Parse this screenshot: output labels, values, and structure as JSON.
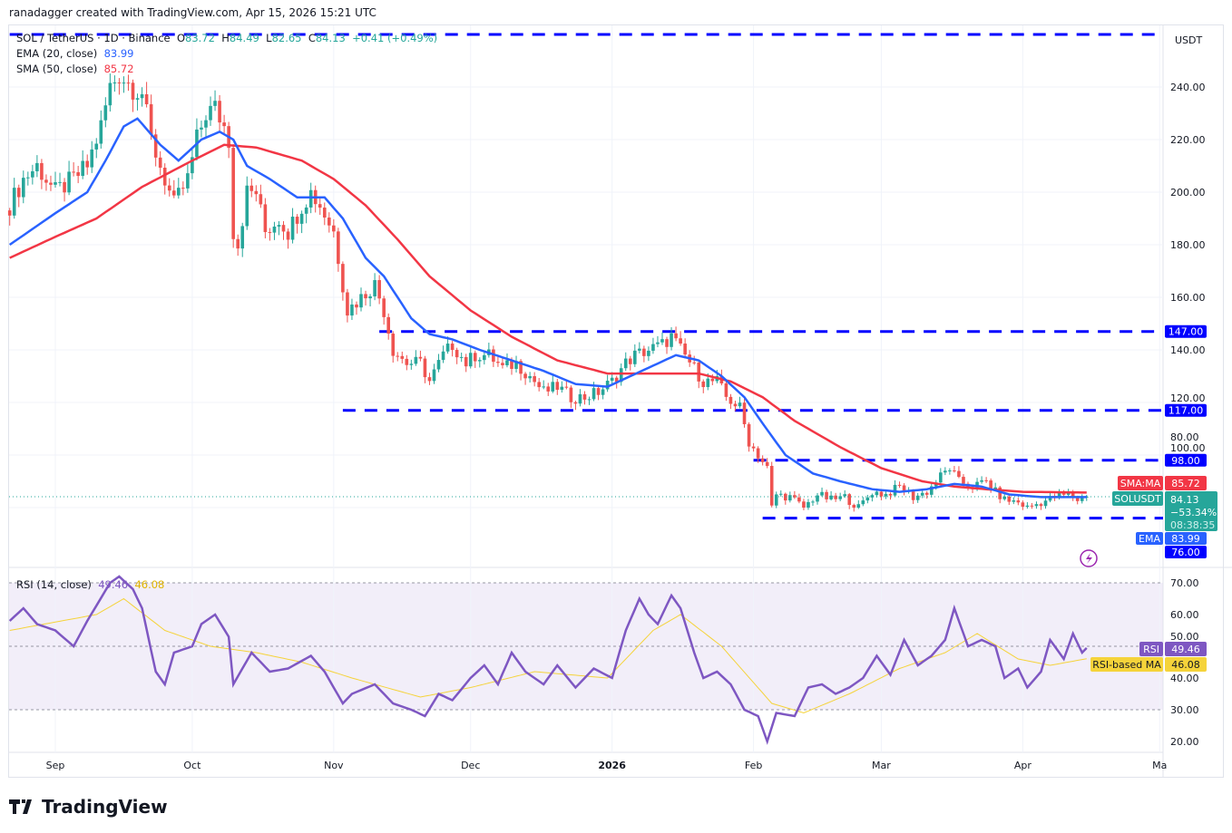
{
  "credit": "ranadagger created with TradingView.com, Apr 15, 2026 15:21 UTC",
  "legend": {
    "symbol": "SOL / TetherUS · 1D · Binance",
    "o_label": "O",
    "o": "83.72",
    "h_label": "H",
    "h": "84.49",
    "l_label": "L",
    "l": "82.65",
    "c_label": "C",
    "c": "84.13",
    "change": "+0.41 (+0.49%)",
    "ema_label": "EMA (20, close)",
    "ema_value": "83.99",
    "sma_label": "SMA (50, close)",
    "sma_value": "85.72",
    "rsi_label": "RSI (14, close)",
    "rsi_value": "49.46",
    "rsi_ma_value": "46.08"
  },
  "logo": "TradingView",
  "chart_data": [
    {
      "type": "candlestick",
      "currency": "USDT",
      "y_ticks": [
        "240.00",
        "220.00",
        "200.00",
        "180.00",
        "160.00",
        "140.00",
        "120.00",
        "100.00",
        "80.00"
      ],
      "x_ticks": [
        {
          "label": "Sep",
          "date": "2025-09-01"
        },
        {
          "label": "Oct",
          "date": "2025-10-01"
        },
        {
          "label": "Nov",
          "date": "2025-11-01"
        },
        {
          "label": "Dec",
          "date": "2025-12-01"
        },
        {
          "label": "2026",
          "date": "2026-01-01"
        },
        {
          "label": "Feb",
          "date": "2026-02-01"
        },
        {
          "label": "Mar",
          "date": "2026-03-01"
        },
        {
          "label": "Apr",
          "date": "2026-04-01"
        },
        {
          "label": "Ma",
          "date": "2026-05-01"
        }
      ],
      "ylim": [
        72,
        264
      ],
      "xlim": [
        "2025-08-22",
        "2026-05-01"
      ],
      "colors": {
        "up": "#26a69a",
        "down": "#ef5350",
        "ema": "#2962ff",
        "sma": "#f23645",
        "levels": "#0000ff"
      },
      "close_anchors": [
        [
          "2025-08-22",
          195
        ],
        [
          "2025-08-25",
          205
        ],
        [
          "2025-08-28",
          210
        ],
        [
          "2025-09-01",
          200
        ],
        [
          "2025-09-05",
          205
        ],
        [
          "2025-09-08",
          210
        ],
        [
          "2025-09-11",
          225
        ],
        [
          "2025-09-13",
          240
        ],
        [
          "2025-09-15",
          245
        ],
        [
          "2025-09-18",
          240
        ],
        [
          "2025-09-20",
          238
        ],
        [
          "2025-09-22",
          220
        ],
        [
          "2025-09-25",
          205
        ],
        [
          "2025-09-27",
          195
        ],
        [
          "2025-09-30",
          205
        ],
        [
          "2025-10-02",
          220
        ],
        [
          "2025-10-04",
          230
        ],
        [
          "2025-10-06",
          232
        ],
        [
          "2025-10-08",
          225
        ],
        [
          "2025-10-09",
          220
        ],
        [
          "2025-10-10",
          185
        ],
        [
          "2025-10-11",
          180
        ],
        [
          "2025-10-13",
          200
        ],
        [
          "2025-10-15",
          200
        ],
        [
          "2025-10-17",
          185
        ],
        [
          "2025-10-20",
          190
        ],
        [
          "2025-10-22",
          185
        ],
        [
          "2025-10-25",
          195
        ],
        [
          "2025-10-27",
          200
        ],
        [
          "2025-10-29",
          195
        ],
        [
          "2025-11-01",
          185
        ],
        [
          "2025-11-03",
          165
        ],
        [
          "2025-11-04",
          155
        ],
        [
          "2025-11-07",
          160
        ],
        [
          "2025-11-10",
          165
        ],
        [
          "2025-11-12",
          155
        ],
        [
          "2025-11-14",
          140
        ],
        [
          "2025-11-17",
          135
        ],
        [
          "2025-11-20",
          135
        ],
        [
          "2025-11-22",
          128
        ],
        [
          "2025-11-25",
          138
        ],
        [
          "2025-11-27",
          142
        ],
        [
          "2025-11-30",
          135
        ],
        [
          "2025-12-02",
          138
        ],
        [
          "2025-12-05",
          138
        ],
        [
          "2025-12-08",
          133
        ],
        [
          "2025-12-11",
          135
        ],
        [
          "2025-12-14",
          130
        ],
        [
          "2025-12-17",
          124
        ],
        [
          "2025-12-20",
          126
        ],
        [
          "2025-12-23",
          122
        ],
        [
          "2025-12-26",
          122
        ],
        [
          "2025-12-29",
          124
        ],
        [
          "2026-01-01",
          128
        ],
        [
          "2026-01-04",
          135
        ],
        [
          "2026-01-06",
          138
        ],
        [
          "2026-01-09",
          140
        ],
        [
          "2026-01-12",
          142
        ],
        [
          "2026-01-14",
          145
        ],
        [
          "2026-01-16",
          140
        ],
        [
          "2026-01-19",
          133
        ],
        [
          "2026-01-21",
          128
        ],
        [
          "2026-01-24",
          128
        ],
        [
          "2026-01-26",
          122
        ],
        [
          "2026-01-29",
          118
        ],
        [
          "2026-01-31",
          105
        ],
        [
          "2026-02-02",
          100
        ],
        [
          "2026-02-04",
          95
        ],
        [
          "2026-02-05",
          80
        ],
        [
          "2026-02-06",
          85
        ],
        [
          "2026-02-09",
          84
        ],
        [
          "2026-02-12",
          80
        ],
        [
          "2026-02-15",
          85
        ],
        [
          "2026-02-18",
          83
        ],
        [
          "2026-02-21",
          84
        ],
        [
          "2026-02-24",
          80
        ],
        [
          "2026-02-27",
          86
        ],
        [
          "2026-03-02",
          85
        ],
        [
          "2026-03-05",
          88
        ],
        [
          "2026-03-08",
          84
        ],
        [
          "2026-03-11",
          86
        ],
        [
          "2026-03-14",
          92
        ],
        [
          "2026-03-16",
          95
        ],
        [
          "2026-03-18",
          90
        ],
        [
          "2026-03-21",
          88
        ],
        [
          "2026-03-24",
          90
        ],
        [
          "2026-03-26",
          86
        ],
        [
          "2026-03-28",
          83
        ],
        [
          "2026-03-31",
          82
        ],
        [
          "2026-04-02",
          80
        ],
        [
          "2026-04-05",
          82
        ],
        [
          "2026-04-08",
          84
        ],
        [
          "2026-04-11",
          85
        ],
        [
          "2026-04-13",
          83
        ],
        [
          "2026-04-15",
          84.13
        ]
      ],
      "ema20": [
        [
          "2025-08-22",
          180
        ],
        [
          "2025-09-01",
          192
        ],
        [
          "2025-09-08",
          200
        ],
        [
          "2025-09-12",
          212
        ],
        [
          "2025-09-16",
          225
        ],
        [
          "2025-09-19",
          228
        ],
        [
          "2025-09-24",
          218
        ],
        [
          "2025-09-28",
          212
        ],
        [
          "2025-10-03",
          220
        ],
        [
          "2025-10-07",
          223
        ],
        [
          "2025-10-10",
          220
        ],
        [
          "2025-10-13",
          210
        ],
        [
          "2025-10-18",
          205
        ],
        [
          "2025-10-24",
          198
        ],
        [
          "2025-10-30",
          198
        ],
        [
          "2025-11-03",
          190
        ],
        [
          "2025-11-08",
          175
        ],
        [
          "2025-11-12",
          168
        ],
        [
          "2025-11-18",
          152
        ],
        [
          "2025-11-22",
          146
        ],
        [
          "2025-11-27",
          144
        ],
        [
          "2025-12-03",
          140
        ],
        [
          "2025-12-10",
          136
        ],
        [
          "2025-12-17",
          132
        ],
        [
          "2025-12-24",
          127
        ],
        [
          "2025-12-31",
          126
        ],
        [
          "2026-01-05",
          130
        ],
        [
          "2026-01-10",
          134
        ],
        [
          "2026-01-15",
          138
        ],
        [
          "2026-01-20",
          136
        ],
        [
          "2026-01-25",
          130
        ],
        [
          "2026-01-30",
          122
        ],
        [
          "2026-02-03",
          112
        ],
        [
          "2026-02-08",
          100
        ],
        [
          "2026-02-14",
          93
        ],
        [
          "2026-02-20",
          90
        ],
        [
          "2026-02-27",
          87
        ],
        [
          "2026-03-05",
          86
        ],
        [
          "2026-03-11",
          87
        ],
        [
          "2026-03-17",
          89
        ],
        [
          "2026-03-23",
          88
        ],
        [
          "2026-03-29",
          85
        ],
        [
          "2026-04-05",
          84
        ],
        [
          "2026-04-15",
          83.99
        ]
      ],
      "sma50": [
        [
          "2025-08-22",
          175
        ],
        [
          "2025-09-01",
          183
        ],
        [
          "2025-09-10",
          190
        ],
        [
          "2025-09-20",
          202
        ],
        [
          "2025-10-01",
          212
        ],
        [
          "2025-10-08",
          218
        ],
        [
          "2025-10-15",
          217
        ],
        [
          "2025-10-25",
          212
        ],
        [
          "2025-11-01",
          205
        ],
        [
          "2025-11-08",
          195
        ],
        [
          "2025-11-15",
          182
        ],
        [
          "2025-11-22",
          168
        ],
        [
          "2025-12-01",
          155
        ],
        [
          "2025-12-10",
          145
        ],
        [
          "2025-12-20",
          136
        ],
        [
          "2025-12-31",
          131
        ],
        [
          "2026-01-10",
          131
        ],
        [
          "2026-01-20",
          131
        ],
        [
          "2026-01-27",
          128
        ],
        [
          "2026-02-03",
          122
        ],
        [
          "2026-02-10",
          113
        ],
        [
          "2026-02-20",
          103
        ],
        [
          "2026-03-01",
          95
        ],
        [
          "2026-03-10",
          90
        ],
        [
          "2026-03-17",
          88
        ],
        [
          "2026-03-24",
          87
        ],
        [
          "2026-04-01",
          86
        ],
        [
          "2026-04-15",
          85.72
        ]
      ],
      "levels": [
        {
          "value": 260,
          "from": "2025-08-22"
        },
        {
          "value": 147,
          "label": "147.00",
          "from": "2025-11-11"
        },
        {
          "value": 117,
          "label": "117.00",
          "from": "2025-11-03"
        },
        {
          "value": 98,
          "label": "98.00",
          "from": "2026-02-01"
        },
        {
          "value": 76,
          "label": "76.00",
          "from": "2026-02-03"
        }
      ],
      "badges": {
        "sma_name": "SMA:MA",
        "sma": "85.72",
        "symbol": "SOLUSDT",
        "last": "84.13",
        "pct": "−53.34%",
        "countdown": "08:38:35",
        "ema_name": "EMA",
        "ema": "83.99"
      }
    },
    {
      "type": "line",
      "ylim": [
        16,
        73
      ],
      "y_ticks": [
        "70.00",
        "60.00",
        "50.00",
        "40.00",
        "30.00",
        "20.00"
      ],
      "bands": [
        30,
        50,
        70
      ],
      "colors": {
        "rsi": "#7e57c2",
        "ma": "#f5d33a",
        "band": "#7e57c2"
      },
      "rsi": [
        [
          "2025-08-22",
          58
        ],
        [
          "2025-08-25",
          62
        ],
        [
          "2025-08-28",
          57
        ],
        [
          "2025-09-01",
          55
        ],
        [
          "2025-09-05",
          50
        ],
        [
          "2025-09-08",
          58
        ],
        [
          "2025-09-13",
          70
        ],
        [
          "2025-09-15",
          72
        ],
        [
          "2025-09-18",
          68
        ],
        [
          "2025-09-20",
          62
        ],
        [
          "2025-09-23",
          42
        ],
        [
          "2025-09-25",
          38
        ],
        [
          "2025-09-27",
          48
        ],
        [
          "2025-10-01",
          50
        ],
        [
          "2025-10-03",
          57
        ],
        [
          "2025-10-06",
          60
        ],
        [
          "2025-10-09",
          53
        ],
        [
          "2025-10-10",
          38
        ],
        [
          "2025-10-14",
          48
        ],
        [
          "2025-10-18",
          42
        ],
        [
          "2025-10-22",
          43
        ],
        [
          "2025-10-27",
          47
        ],
        [
          "2025-10-30",
          42
        ],
        [
          "2025-11-03",
          32
        ],
        [
          "2025-11-05",
          35
        ],
        [
          "2025-11-10",
          38
        ],
        [
          "2025-11-14",
          32
        ],
        [
          "2025-11-18",
          30
        ],
        [
          "2025-11-21",
          28
        ],
        [
          "2025-11-24",
          35
        ],
        [
          "2025-11-27",
          33
        ],
        [
          "2025-12-01",
          40
        ],
        [
          "2025-12-04",
          44
        ],
        [
          "2025-12-07",
          38
        ],
        [
          "2025-12-10",
          48
        ],
        [
          "2025-12-13",
          42
        ],
        [
          "2025-12-17",
          38
        ],
        [
          "2025-12-20",
          44
        ],
        [
          "2025-12-24",
          37
        ],
        [
          "2025-12-28",
          43
        ],
        [
          "2026-01-01",
          40
        ],
        [
          "2026-01-04",
          55
        ],
        [
          "2026-01-07",
          65
        ],
        [
          "2026-01-09",
          60
        ],
        [
          "2026-01-11",
          57
        ],
        [
          "2026-01-14",
          66
        ],
        [
          "2026-01-16",
          62
        ],
        [
          "2026-01-19",
          48
        ],
        [
          "2026-01-21",
          40
        ],
        [
          "2026-01-24",
          42
        ],
        [
          "2026-01-27",
          38
        ],
        [
          "2026-01-30",
          30
        ],
        [
          "2026-02-02",
          28
        ],
        [
          "2026-02-04",
          20
        ],
        [
          "2026-02-06",
          29
        ],
        [
          "2026-02-10",
          28
        ],
        [
          "2026-02-13",
          37
        ],
        [
          "2026-02-16",
          38
        ],
        [
          "2026-02-19",
          35
        ],
        [
          "2026-02-22",
          37
        ],
        [
          "2026-02-25",
          40
        ],
        [
          "2026-02-28",
          47
        ],
        [
          "2026-03-03",
          41
        ],
        [
          "2026-03-06",
          52
        ],
        [
          "2026-03-09",
          44
        ],
        [
          "2026-03-12",
          47
        ],
        [
          "2026-03-15",
          52
        ],
        [
          "2026-03-17",
          62
        ],
        [
          "2026-03-20",
          50
        ],
        [
          "2026-03-23",
          52
        ],
        [
          "2026-03-26",
          50
        ],
        [
          "2026-03-28",
          40
        ],
        [
          "2026-03-31",
          43
        ],
        [
          "2026-04-02",
          37
        ],
        [
          "2026-04-05",
          42
        ],
        [
          "2026-04-07",
          52
        ],
        [
          "2026-04-10",
          46
        ],
        [
          "2026-04-12",
          54
        ],
        [
          "2026-04-14",
          48
        ],
        [
          "2026-04-15",
          49.46
        ]
      ],
      "rsi_ma": [
        [
          "2025-08-22",
          55
        ],
        [
          "2025-09-10",
          60
        ],
        [
          "2025-09-16",
          65
        ],
        [
          "2025-09-25",
          55
        ],
        [
          "2025-10-05",
          50
        ],
        [
          "2025-10-15",
          48
        ],
        [
          "2025-10-25",
          45
        ],
        [
          "2025-11-05",
          40
        ],
        [
          "2025-11-20",
          34
        ],
        [
          "2025-12-01",
          37
        ],
        [
          "2025-12-15",
          42
        ],
        [
          "2025-12-31",
          40
        ],
        [
          "2026-01-10",
          55
        ],
        [
          "2026-01-16",
          60
        ],
        [
          "2026-01-25",
          50
        ],
        [
          "2026-02-05",
          32
        ],
        [
          "2026-02-12",
          29
        ],
        [
          "2026-02-22",
          35
        ],
        [
          "2026-03-05",
          43
        ],
        [
          "2026-03-15",
          48
        ],
        [
          "2026-03-22",
          54
        ],
        [
          "2026-03-31",
          46
        ],
        [
          "2026-04-07",
          44
        ],
        [
          "2026-04-15",
          46.08
        ]
      ],
      "badges": {
        "rsi_name": "RSI",
        "rsi": "49.46",
        "ma_name": "RSI-based MA",
        "ma": "46.08"
      }
    }
  ]
}
